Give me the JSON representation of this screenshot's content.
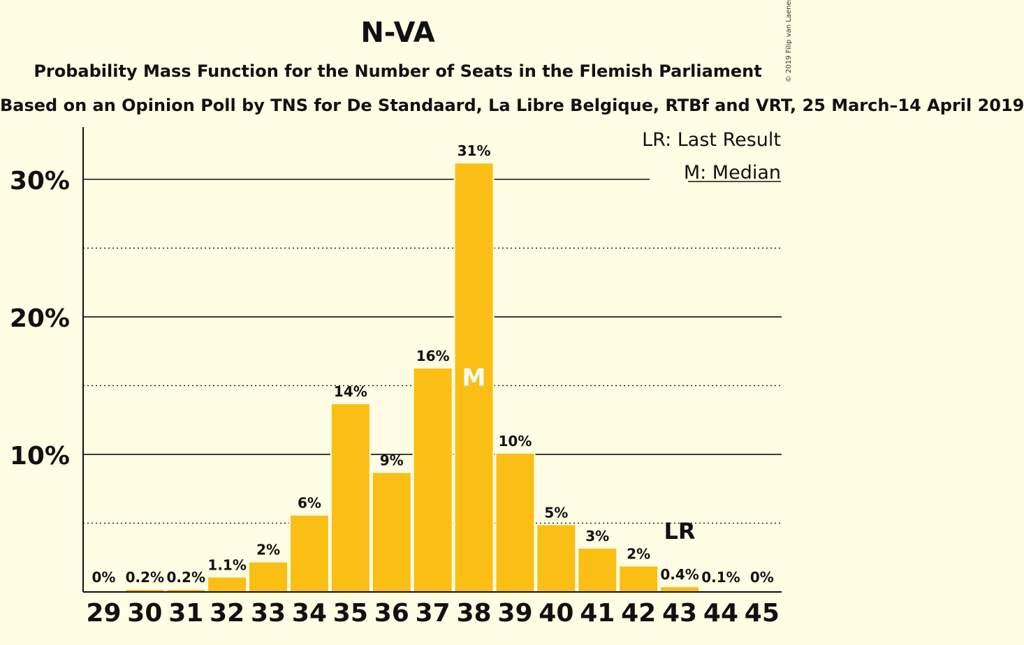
{
  "chart_data": {
    "type": "bar",
    "title": "N-VA",
    "subtitle": "Probability Mass Function for the Number of Seats in the Flemish Parliament",
    "subtitle2": "Based on an Opinion Poll by TNS for De Standaard, La Libre Belgique, RTBf and VRT, 25 March–14 April 2019",
    "copyright": "© 2019 Filip van Laenen",
    "categories": [
      "29",
      "30",
      "31",
      "32",
      "33",
      "34",
      "35",
      "36",
      "37",
      "38",
      "39",
      "40",
      "41",
      "42",
      "43",
      "44",
      "45"
    ],
    "values": [
      0,
      0.2,
      0.2,
      1.1,
      2.2,
      5.6,
      13.7,
      8.7,
      16.3,
      31.2,
      10.1,
      4.9,
      3.2,
      1.9,
      0.4,
      0.1,
      0
    ],
    "data_labels": [
      "0%",
      "0.2%",
      "0.2%",
      "1.1%",
      "2%",
      "6%",
      "14%",
      "9%",
      "16%",
      "31%",
      "10%",
      "5%",
      "3%",
      "2%",
      "0.4%",
      "0.1%",
      "0%"
    ],
    "ylim": [
      0,
      33.8
    ],
    "y_ticks": [
      {
        "value": 10,
        "label": "10%"
      },
      {
        "value": 20,
        "label": "20%"
      },
      {
        "value": 30,
        "label": "30%"
      }
    ],
    "dotted_lines": [
      5,
      15,
      25
    ],
    "median_category": "38",
    "median_marker": "M",
    "last_result_category": "43",
    "last_result_marker": "LR",
    "legend": [
      "LR: Last Result",
      "M: Median"
    ],
    "legend_position": "top-right",
    "bar_color": "#FBBE14",
    "background_color": "#FFFDE3"
  }
}
